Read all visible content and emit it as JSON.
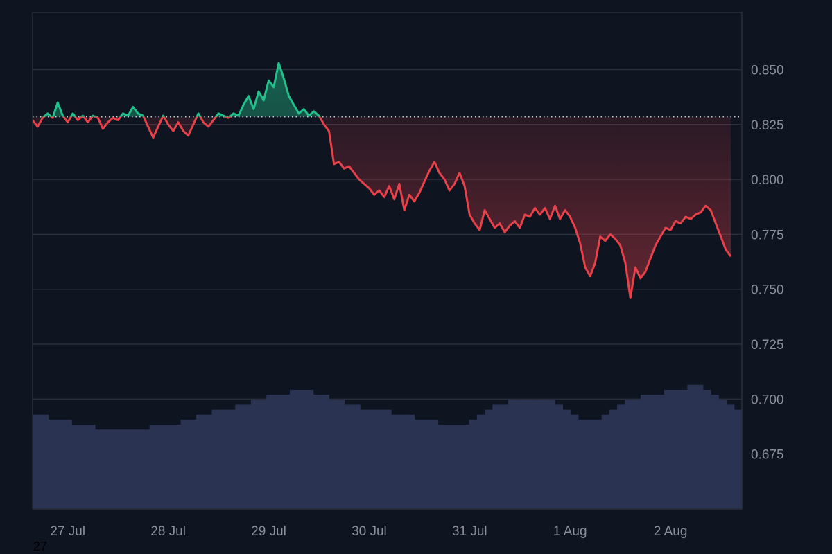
{
  "colors": {
    "background": "#0e1420",
    "grid": "#2a2f3b",
    "axis_text": "#8a8f9a",
    "up_line": "#22c08a",
    "down_line": "#e8414a",
    "baseline": "#c8ccd4",
    "volume": "#2a3352"
  },
  "footer_label": "27",
  "chart_data": {
    "type": "line",
    "title": "",
    "xlabel": "",
    "ylabel": "",
    "y_axis_position": "right",
    "grid": true,
    "ylim": [
      0.65,
      0.876
    ],
    "xlim": [
      0,
      7.06
    ],
    "baseline_value": 0.8285,
    "y_ticks": [
      "0.850",
      "0.825",
      "0.800",
      "0.775",
      "0.750",
      "0.725",
      "0.700",
      "0.675"
    ],
    "y_tick_values": [
      0.85,
      0.825,
      0.8,
      0.775,
      0.75,
      0.725,
      0.7,
      0.675
    ],
    "x_ticks": [
      "27 Jul",
      "28 Jul",
      "29 Jul",
      "30 Jul",
      "31 Jul",
      "1 Aug",
      "2 Aug"
    ],
    "x_tick_values": [
      0.35,
      1.35,
      2.35,
      3.35,
      4.35,
      5.35,
      6.35
    ],
    "series": [
      {
        "values": [
          [
            0.0,
            0.827
          ],
          [
            0.05,
            0.824
          ],
          [
            0.1,
            0.828
          ],
          [
            0.15,
            0.83
          ],
          [
            0.2,
            0.828
          ],
          [
            0.25,
            0.835
          ],
          [
            0.3,
            0.829
          ],
          [
            0.35,
            0.826
          ],
          [
            0.4,
            0.83
          ],
          [
            0.45,
            0.827
          ],
          [
            0.5,
            0.829
          ],
          [
            0.55,
            0.826
          ],
          [
            0.6,
            0.829
          ],
          [
            0.65,
            0.828
          ],
          [
            0.7,
            0.823
          ],
          [
            0.75,
            0.826
          ],
          [
            0.8,
            0.828
          ],
          [
            0.85,
            0.827
          ],
          [
            0.9,
            0.83
          ],
          [
            0.95,
            0.829
          ],
          [
            1.0,
            0.833
          ],
          [
            1.05,
            0.83
          ],
          [
            1.1,
            0.829
          ],
          [
            1.15,
            0.824
          ],
          [
            1.2,
            0.819
          ],
          [
            1.25,
            0.824
          ],
          [
            1.3,
            0.829
          ],
          [
            1.35,
            0.825
          ],
          [
            1.4,
            0.822
          ],
          [
            1.45,
            0.826
          ],
          [
            1.5,
            0.822
          ],
          [
            1.55,
            0.82
          ],
          [
            1.6,
            0.825
          ],
          [
            1.65,
            0.83
          ],
          [
            1.7,
            0.826
          ],
          [
            1.75,
            0.824
          ],
          [
            1.8,
            0.827
          ],
          [
            1.85,
            0.83
          ],
          [
            1.9,
            0.829
          ],
          [
            1.95,
            0.828
          ],
          [
            2.0,
            0.83
          ],
          [
            2.05,
            0.829
          ],
          [
            2.1,
            0.834
          ],
          [
            2.15,
            0.838
          ],
          [
            2.2,
            0.832
          ],
          [
            2.25,
            0.84
          ],
          [
            2.3,
            0.836
          ],
          [
            2.35,
            0.845
          ],
          [
            2.4,
            0.842
          ],
          [
            2.45,
            0.853
          ],
          [
            2.5,
            0.846
          ],
          [
            2.55,
            0.838
          ],
          [
            2.6,
            0.834
          ],
          [
            2.65,
            0.83
          ],
          [
            2.7,
            0.832
          ],
          [
            2.75,
            0.829
          ],
          [
            2.8,
            0.831
          ],
          [
            2.85,
            0.829
          ],
          [
            2.9,
            0.825
          ],
          [
            2.95,
            0.822
          ],
          [
            3.0,
            0.807
          ],
          [
            3.05,
            0.808
          ],
          [
            3.1,
            0.805
          ],
          [
            3.15,
            0.806
          ],
          [
            3.2,
            0.803
          ],
          [
            3.25,
            0.8
          ],
          [
            3.3,
            0.798
          ],
          [
            3.35,
            0.796
          ],
          [
            3.4,
            0.793
          ],
          [
            3.45,
            0.795
          ],
          [
            3.5,
            0.792
          ],
          [
            3.55,
            0.797
          ],
          [
            3.6,
            0.791
          ],
          [
            3.65,
            0.798
          ],
          [
            3.7,
            0.786
          ],
          [
            3.75,
            0.793
          ],
          [
            3.8,
            0.79
          ],
          [
            3.85,
            0.794
          ],
          [
            3.9,
            0.799
          ],
          [
            3.95,
            0.804
          ],
          [
            4.0,
            0.808
          ],
          [
            4.05,
            0.803
          ],
          [
            4.1,
            0.8
          ],
          [
            4.15,
            0.795
          ],
          [
            4.2,
            0.798
          ],
          [
            4.25,
            0.803
          ],
          [
            4.3,
            0.797
          ],
          [
            4.35,
            0.784
          ],
          [
            4.4,
            0.78
          ],
          [
            4.45,
            0.777
          ],
          [
            4.5,
            0.786
          ],
          [
            4.55,
            0.782
          ],
          [
            4.6,
            0.778
          ],
          [
            4.65,
            0.78
          ],
          [
            4.7,
            0.776
          ],
          [
            4.75,
            0.779
          ],
          [
            4.8,
            0.781
          ],
          [
            4.85,
            0.778
          ],
          [
            4.9,
            0.784
          ],
          [
            4.95,
            0.783
          ],
          [
            5.0,
            0.787
          ],
          [
            5.05,
            0.784
          ],
          [
            5.1,
            0.787
          ],
          [
            5.15,
            0.782
          ],
          [
            5.2,
            0.788
          ],
          [
            5.25,
            0.782
          ],
          [
            5.3,
            0.786
          ],
          [
            5.35,
            0.783
          ],
          [
            5.4,
            0.778
          ],
          [
            5.45,
            0.771
          ],
          [
            5.5,
            0.76
          ],
          [
            5.55,
            0.756
          ],
          [
            5.6,
            0.762
          ],
          [
            5.65,
            0.774
          ],
          [
            5.7,
            0.772
          ],
          [
            5.75,
            0.775
          ],
          [
            5.8,
            0.773
          ],
          [
            5.85,
            0.77
          ],
          [
            5.9,
            0.762
          ],
          [
            5.95,
            0.746
          ],
          [
            6.0,
            0.76
          ],
          [
            6.05,
            0.755
          ],
          [
            6.1,
            0.758
          ],
          [
            6.15,
            0.764
          ],
          [
            6.2,
            0.77
          ],
          [
            6.25,
            0.774
          ],
          [
            6.3,
            0.778
          ],
          [
            6.35,
            0.777
          ],
          [
            6.4,
            0.781
          ],
          [
            6.45,
            0.78
          ],
          [
            6.5,
            0.783
          ],
          [
            6.55,
            0.782
          ],
          [
            6.6,
            0.784
          ],
          [
            6.65,
            0.785
          ],
          [
            6.7,
            0.788
          ],
          [
            6.75,
            0.786
          ],
          [
            6.8,
            0.78
          ],
          [
            6.85,
            0.774
          ],
          [
            6.9,
            0.768
          ],
          [
            6.95,
            0.765
          ]
        ]
      }
    ],
    "volume": [
      0.19,
      0.19,
      0.18,
      0.18,
      0.18,
      0.17,
      0.17,
      0.17,
      0.16,
      0.16,
      0.16,
      0.16,
      0.16,
      0.16,
      0.16,
      0.17,
      0.17,
      0.17,
      0.17,
      0.18,
      0.18,
      0.19,
      0.19,
      0.2,
      0.2,
      0.2,
      0.21,
      0.21,
      0.22,
      0.22,
      0.23,
      0.23,
      0.23,
      0.24,
      0.24,
      0.24,
      0.23,
      0.23,
      0.22,
      0.22,
      0.21,
      0.21,
      0.2,
      0.2,
      0.2,
      0.2,
      0.19,
      0.19,
      0.19,
      0.18,
      0.18,
      0.18,
      0.17,
      0.17,
      0.17,
      0.17,
      0.18,
      0.19,
      0.2,
      0.21,
      0.21,
      0.22,
      0.22,
      0.22,
      0.22,
      0.22,
      0.22,
      0.21,
      0.2,
      0.19,
      0.18,
      0.18,
      0.18,
      0.19,
      0.2,
      0.21,
      0.22,
      0.22,
      0.23,
      0.23,
      0.23,
      0.24,
      0.24,
      0.24,
      0.25,
      0.25,
      0.24,
      0.23,
      0.22,
      0.21,
      0.2
    ]
  }
}
